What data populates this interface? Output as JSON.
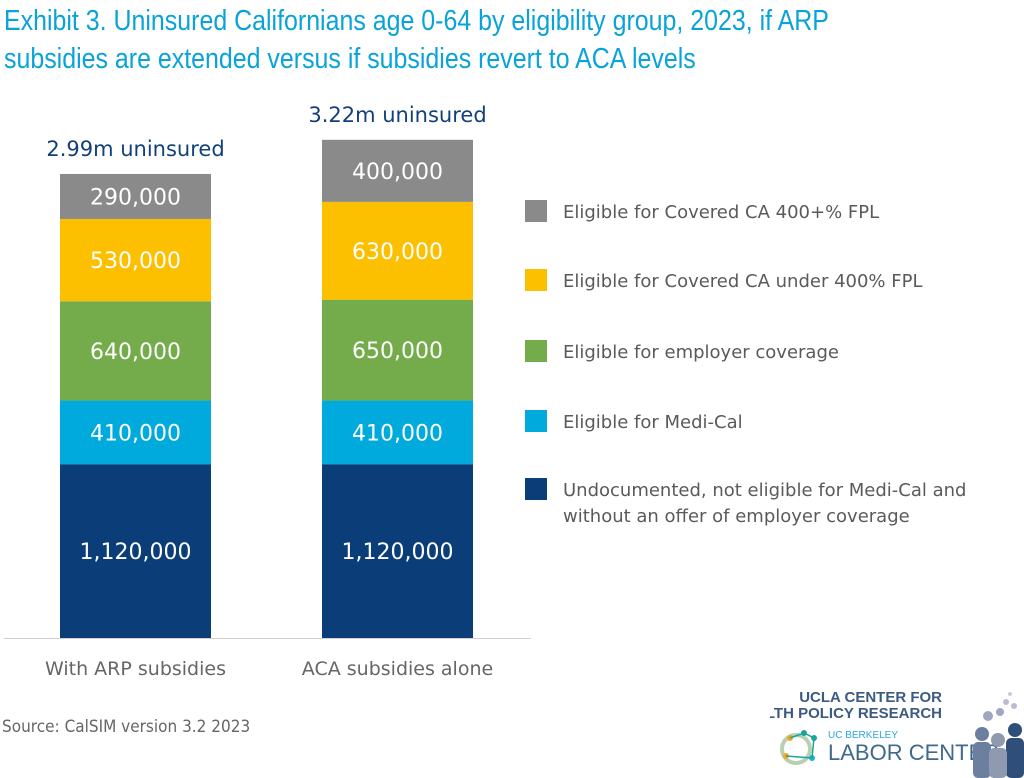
{
  "chart_data": {
    "type": "bar",
    "stacked": true,
    "title": "Exhibit 3. Uninsured Californians age 0-64 by eligibility group, 2023, if ARP subsidies are extended versus if subsidies revert to ACA levels",
    "title_lines": [
      "Exhibit 3. Uninsured Californians age 0-64 by eligibility group, 2023, if ARP",
      "subsidies are extended versus if subsidies revert to ACA levels"
    ],
    "categories": [
      "With ARP subsidies",
      "ACA subsidies alone"
    ],
    "totals_labels": [
      "2.99m uninsured",
      "3.22m uninsured"
    ],
    "series": [
      {
        "name": "Undocumented, not eligible for Medi-Cal and without an offer of employer coverage",
        "legend_lines": [
          "Undocumented, not eligible for Medi-Cal and",
          "without an offer of employer coverage"
        ],
        "color": "#0b3d78",
        "values": [
          1120000,
          1120000
        ],
        "labels": [
          "1,120,000",
          "1,120,000"
        ]
      },
      {
        "name": "Eligible for Medi-Cal",
        "legend_lines": [
          "Eligible for Medi-Cal"
        ],
        "color": "#00aadd",
        "values": [
          410000,
          410000
        ],
        "labels": [
          "410,000",
          "410,000"
        ]
      },
      {
        "name": "Eligible for employer coverage",
        "legend_lines": [
          "Eligible for employer coverage"
        ],
        "color": "#74ab4b",
        "values": [
          640000,
          650000
        ],
        "labels": [
          "640,000",
          "650,000"
        ]
      },
      {
        "name": "Eligible for Covered CA under 400% FPL",
        "legend_lines": [
          "Eligible for Covered CA under 400% FPL"
        ],
        "color": "#fdc000",
        "values": [
          530000,
          630000
        ],
        "labels": [
          "530,000",
          "630,000"
        ]
      },
      {
        "name": "Eligible for Covered CA 400+% FPL",
        "legend_lines": [
          "Eligible for Covered CA 400+% FPL"
        ],
        "color": "#8a8a8a",
        "values": [
          290000,
          400000
        ],
        "labels": [
          "290,000",
          "400,000"
        ]
      }
    ],
    "legend_position": "right",
    "grid": false
  },
  "source": "Source: CalSIM version 3.2 2023",
  "logos": {
    "ucla": [
      "UCLA CENTER FOR",
      "HEALTH POLICY RESEARCH"
    ],
    "berkeley_small": "UC BERKELEY",
    "berkeley_big": "LABOR CENTER"
  }
}
